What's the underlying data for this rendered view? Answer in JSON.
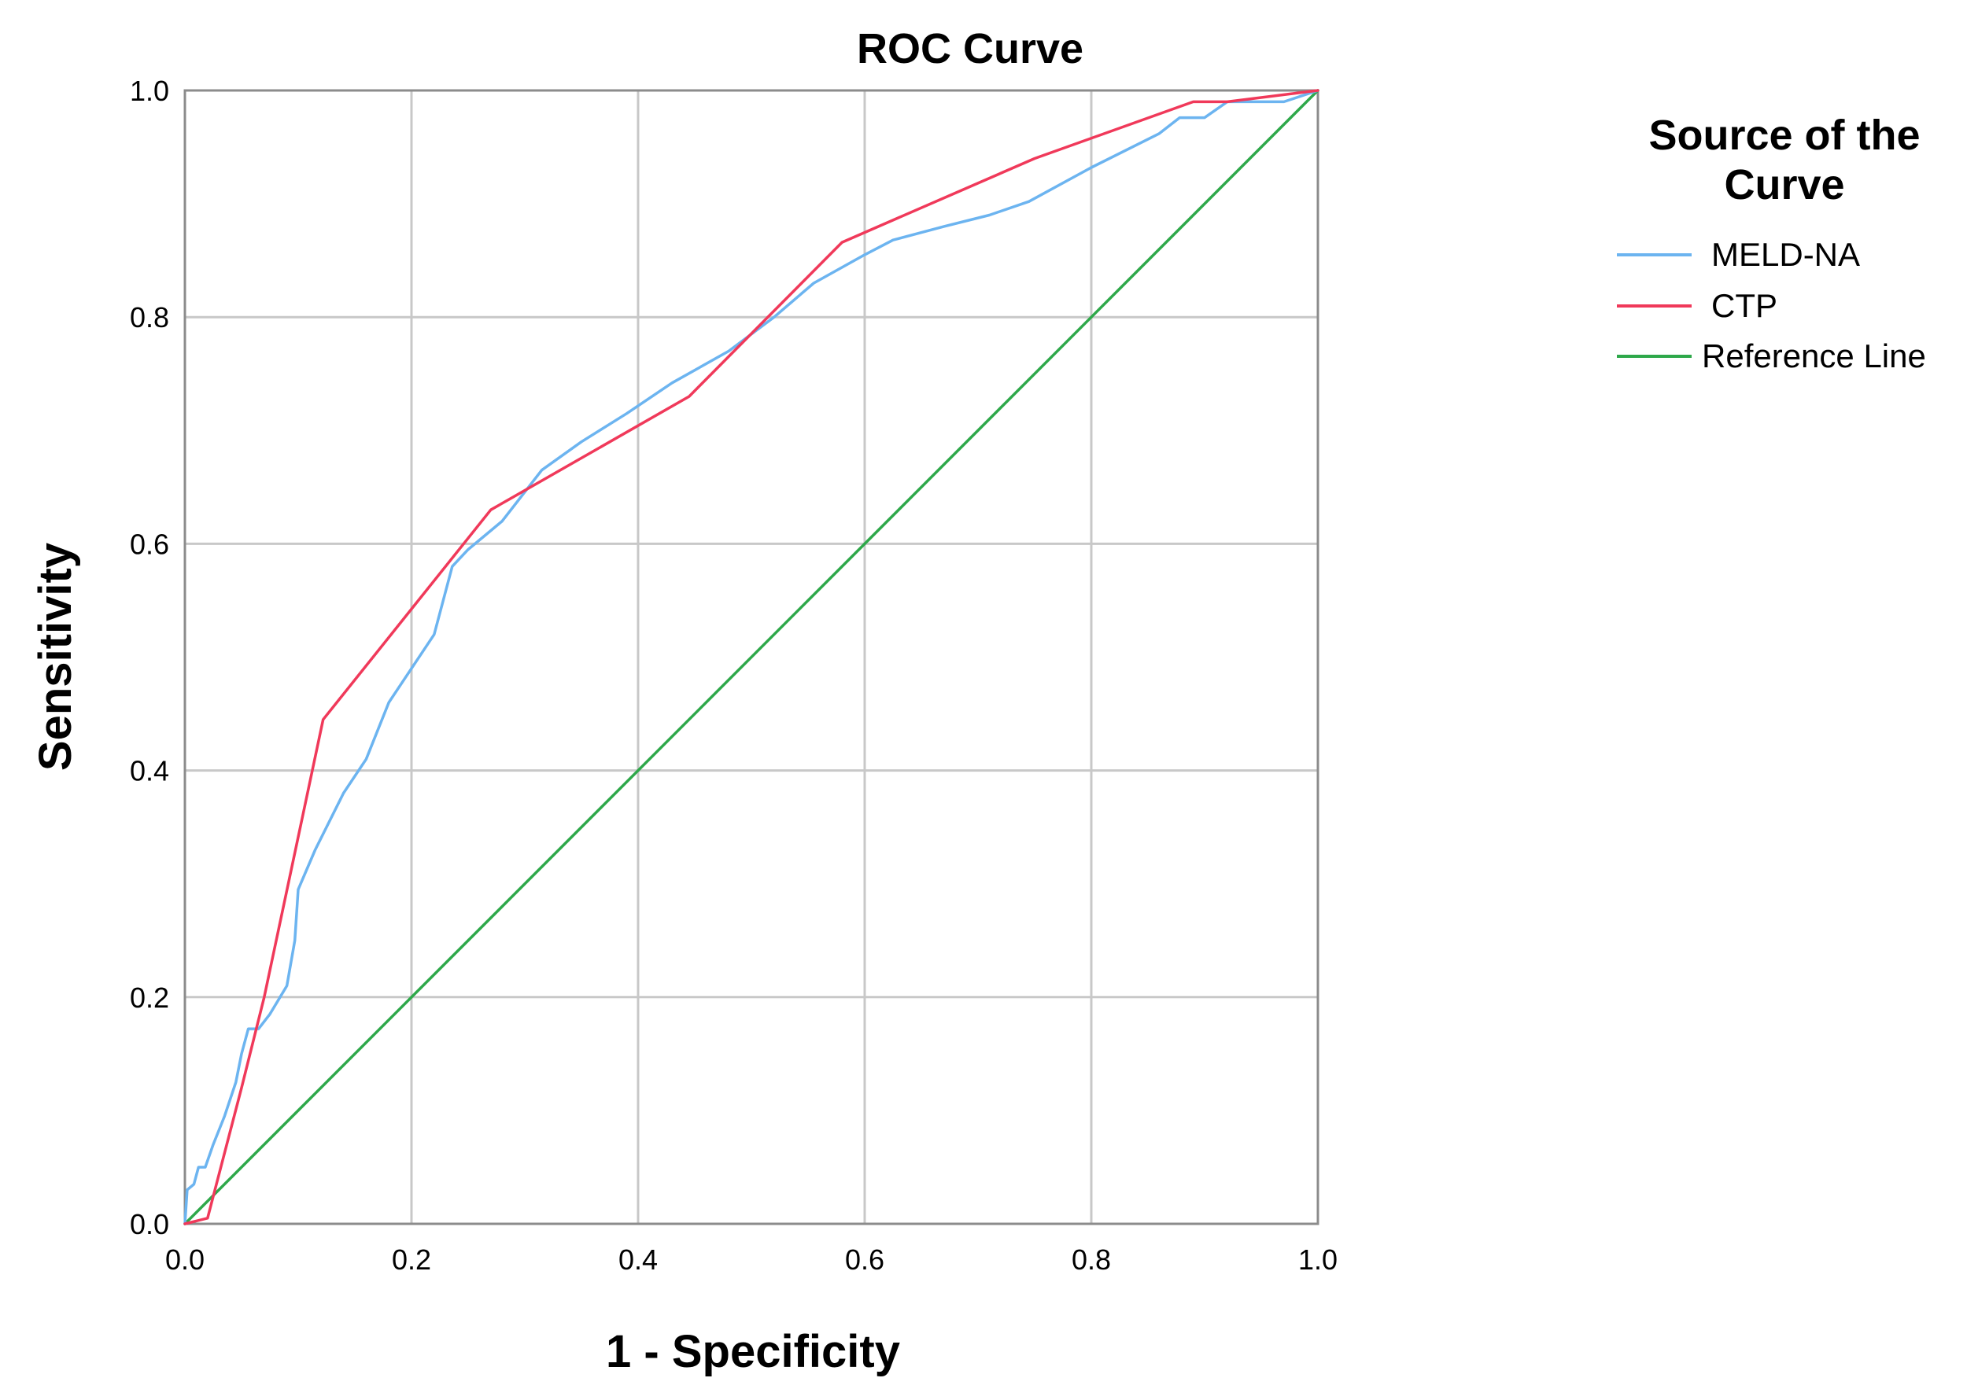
{
  "chart_data": {
    "type": "line",
    "title": "ROC Curve",
    "xlabel": "1 - Specificity",
    "ylabel": "Sensitivity",
    "xlim": [
      0,
      1
    ],
    "ylim": [
      0,
      1
    ],
    "grid": true,
    "xticks": [
      "0.0",
      "0.2",
      "0.4",
      "0.6",
      "0.8",
      "1.0"
    ],
    "yticks": [
      "0.0",
      "0.2",
      "0.4",
      "0.6",
      "0.8",
      "1.0"
    ],
    "legend": {
      "title_line1": "Source of the",
      "title_line2": "Curve",
      "placement": "right"
    },
    "series": [
      {
        "name": "MELD-NA",
        "color": "#6cb4f0",
        "points": [
          [
            0,
            0
          ],
          [
            0.002,
            0.03
          ],
          [
            0.008,
            0.035
          ],
          [
            0.012,
            0.05
          ],
          [
            0.018,
            0.05
          ],
          [
            0.025,
            0.07
          ],
          [
            0.035,
            0.095
          ],
          [
            0.045,
            0.125
          ],
          [
            0.05,
            0.15
          ],
          [
            0.056,
            0.172
          ],
          [
            0.065,
            0.172
          ],
          [
            0.075,
            0.185
          ],
          [
            0.09,
            0.21
          ],
          [
            0.097,
            0.25
          ],
          [
            0.1,
            0.295
          ],
          [
            0.115,
            0.33
          ],
          [
            0.14,
            0.38
          ],
          [
            0.16,
            0.41
          ],
          [
            0.18,
            0.46
          ],
          [
            0.22,
            0.52
          ],
          [
            0.236,
            0.58
          ],
          [
            0.25,
            0.595
          ],
          [
            0.28,
            0.62
          ],
          [
            0.315,
            0.665
          ],
          [
            0.35,
            0.69
          ],
          [
            0.39,
            0.715
          ],
          [
            0.43,
            0.742
          ],
          [
            0.48,
            0.77
          ],
          [
            0.52,
            0.8
          ],
          [
            0.555,
            0.83
          ],
          [
            0.6,
            0.855
          ],
          [
            0.625,
            0.868
          ],
          [
            0.67,
            0.88
          ],
          [
            0.71,
            0.89
          ],
          [
            0.745,
            0.902
          ],
          [
            0.8,
            0.932
          ],
          [
            0.86,
            0.962
          ],
          [
            0.878,
            0.976
          ],
          [
            0.9,
            0.976
          ],
          [
            0.92,
            0.99
          ],
          [
            0.97,
            0.99
          ],
          [
            1.0,
            1.0
          ]
        ]
      },
      {
        "name": "CTP",
        "color": "#f0395a",
        "points": [
          [
            0,
            0
          ],
          [
            0.02,
            0.005
          ],
          [
            0.05,
            0.12
          ],
          [
            0.07,
            0.2
          ],
          [
            0.122,
            0.445
          ],
          [
            0.27,
            0.63
          ],
          [
            0.445,
            0.73
          ],
          [
            0.58,
            0.866
          ],
          [
            0.75,
            0.94
          ],
          [
            0.89,
            0.99
          ],
          [
            0.92,
            0.99
          ],
          [
            1.0,
            1.0
          ]
        ]
      },
      {
        "name": "Reference Line",
        "color": "#2ea84a",
        "points": [
          [
            0,
            0
          ],
          [
            1,
            1
          ]
        ]
      }
    ]
  }
}
